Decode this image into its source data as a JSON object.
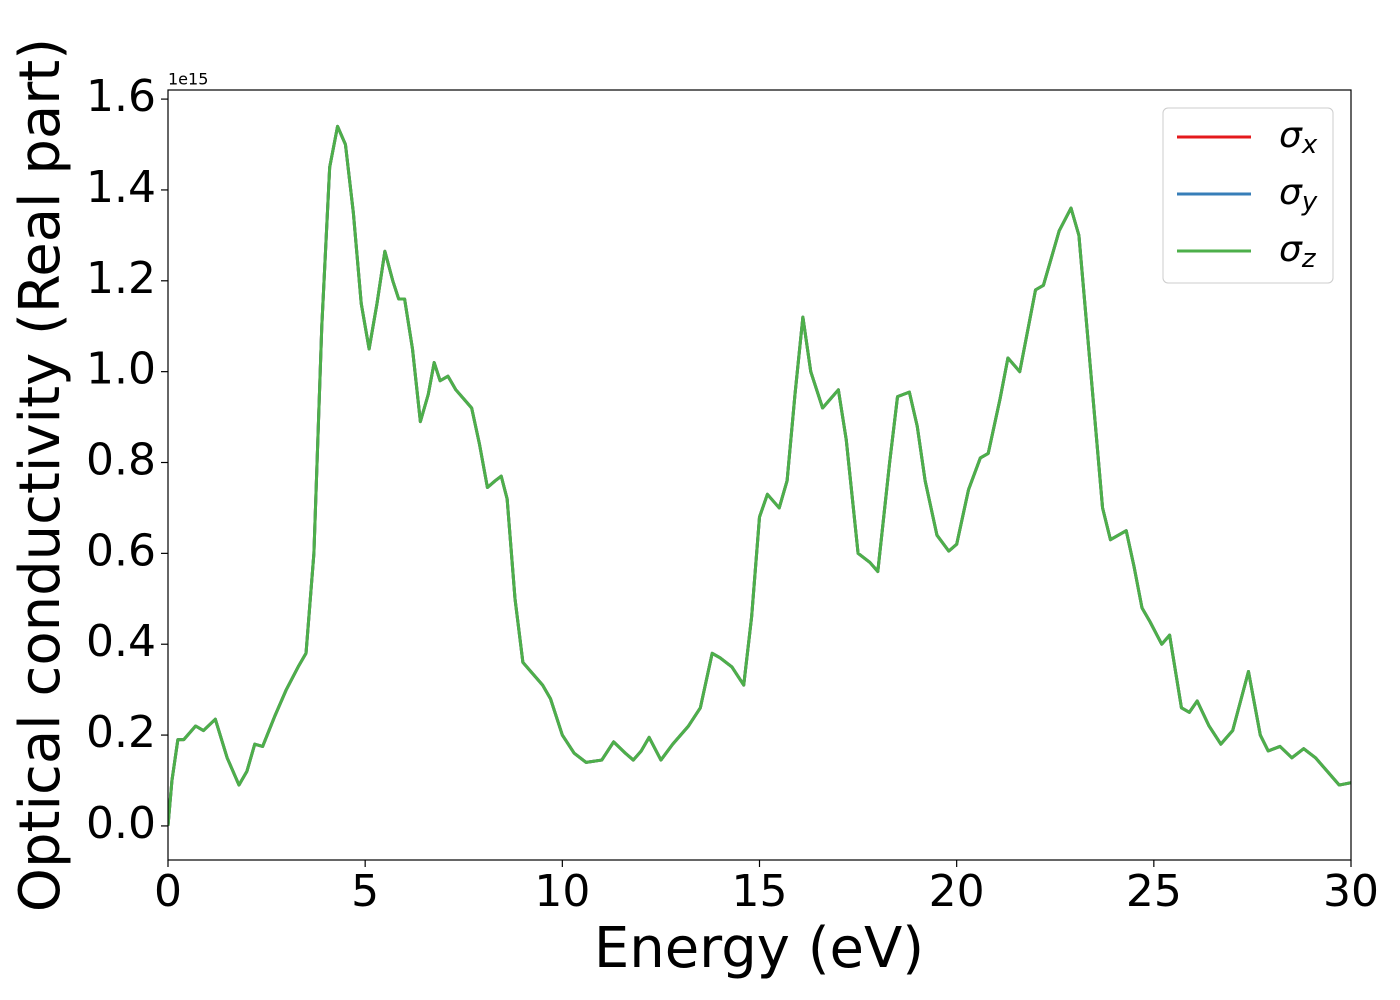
{
  "chart_data": {
    "type": "line",
    "xlabel": "Energy (eV)",
    "ylabel": "Optical conductivity (Real part)",
    "y_offset_label": "1e15",
    "xlim": [
      0,
      30
    ],
    "xticks": [
      0,
      5,
      10,
      15,
      20,
      25,
      30
    ],
    "ylim": [
      -0.075,
      1.62
    ],
    "yticks": [
      {
        "value": 0,
        "label": "0.0"
      },
      0.2,
      0.4,
      0.6,
      0.8,
      {
        "value": 1,
        "label": "1.0"
      },
      1.2,
      1.4,
      1.6
    ],
    "legend": "upper right",
    "x": [
      0,
      0.1,
      0.25,
      0.4,
      0.7,
      0.9,
      1.2,
      1.5,
      1.8,
      2.0,
      2.2,
      2.4,
      2.7,
      3.0,
      3.3,
      3.5,
      3.7,
      3.9,
      4.1,
      4.3,
      4.5,
      4.7,
      4.9,
      5.1,
      5.3,
      5.5,
      5.7,
      5.85,
      6.0,
      6.2,
      6.4,
      6.6,
      6.75,
      6.9,
      7.1,
      7.3,
      7.5,
      7.7,
      7.9,
      8.1,
      8.3,
      8.45,
      8.6,
      8.8,
      9.0,
      9.2,
      9.5,
      9.7,
      10.0,
      10.3,
      10.6,
      11.0,
      11.3,
      11.6,
      11.8,
      12.0,
      12.2,
      12.5,
      12.8,
      13.2,
      13.5,
      13.8,
      14.0,
      14.3,
      14.6,
      14.8,
      15.0,
      15.2,
      15.5,
      15.7,
      15.9,
      16.1,
      16.3,
      16.6,
      16.8,
      17.0,
      17.2,
      17.5,
      17.8,
      18.0,
      18.3,
      18.5,
      18.8,
      19.0,
      19.2,
      19.5,
      19.8,
      20.0,
      20.3,
      20.6,
      20.8,
      21.1,
      21.3,
      21.6,
      21.8,
      22.0,
      22.2,
      22.4,
      22.6,
      22.9,
      23.1,
      23.4,
      23.7,
      23.9,
      24.1,
      24.3,
      24.5,
      24.7,
      24.9,
      25.2,
      25.4,
      25.7,
      25.9,
      26.1,
      26.4,
      26.7,
      27.0,
      27.4,
      27.7,
      27.9,
      28.2,
      28.5,
      28.8,
      29.1,
      29.4,
      29.7,
      30.0
    ],
    "series": [
      {
        "name": "σx",
        "color": "#e41a1c",
        "values": [
          0,
          0.1,
          0.19,
          0.19,
          0.22,
          0.21,
          0.235,
          0.15,
          0.09,
          0.12,
          0.18,
          0.175,
          0.24,
          0.3,
          0.35,
          0.38,
          0.6,
          1.1,
          1.45,
          1.54,
          1.5,
          1.35,
          1.15,
          1.05,
          1.15,
          1.265,
          1.2,
          1.16,
          1.16,
          1.05,
          0.89,
          0.95,
          1.02,
          0.98,
          0.99,
          0.96,
          0.94,
          0.92,
          0.84,
          0.745,
          0.76,
          0.77,
          0.72,
          0.5,
          0.36,
          0.34,
          0.31,
          0.28,
          0.2,
          0.16,
          0.14,
          0.145,
          0.185,
          0.16,
          0.145,
          0.165,
          0.195,
          0.145,
          0.18,
          0.22,
          0.26,
          0.38,
          0.37,
          0.35,
          0.31,
          0.46,
          0.68,
          0.73,
          0.7,
          0.76,
          0.95,
          1.12,
          1.0,
          0.92,
          0.94,
          0.96,
          0.85,
          0.6,
          0.58,
          0.56,
          0.8,
          0.945,
          0.955,
          0.88,
          0.76,
          0.64,
          0.605,
          0.62,
          0.74,
          0.81,
          0.82,
          0.94,
          1.03,
          1.0,
          1.09,
          1.18,
          1.19,
          1.25,
          1.31,
          1.36,
          1.3,
          1.0,
          0.7,
          0.63,
          0.64,
          0.65,
          0.57,
          0.48,
          0.45,
          0.4,
          0.42,
          0.26,
          0.25,
          0.275,
          0.22,
          0.18,
          0.21,
          0.34,
          0.2,
          0.165,
          0.175,
          0.15,
          0.17,
          0.15,
          0.12,
          0.09,
          0.095
        ]
      },
      {
        "name": "σy",
        "color": "#377eb8",
        "values": [
          0,
          0.1,
          0.19,
          0.19,
          0.22,
          0.21,
          0.235,
          0.15,
          0.09,
          0.12,
          0.18,
          0.175,
          0.24,
          0.3,
          0.35,
          0.38,
          0.6,
          1.1,
          1.45,
          1.54,
          1.5,
          1.35,
          1.15,
          1.05,
          1.15,
          1.265,
          1.2,
          1.16,
          1.16,
          1.05,
          0.89,
          0.95,
          1.02,
          0.98,
          0.99,
          0.96,
          0.94,
          0.92,
          0.84,
          0.745,
          0.76,
          0.77,
          0.72,
          0.5,
          0.36,
          0.34,
          0.31,
          0.28,
          0.2,
          0.16,
          0.14,
          0.145,
          0.185,
          0.16,
          0.145,
          0.165,
          0.195,
          0.145,
          0.18,
          0.22,
          0.26,
          0.38,
          0.37,
          0.35,
          0.31,
          0.46,
          0.68,
          0.73,
          0.7,
          0.76,
          0.95,
          1.12,
          1.0,
          0.92,
          0.94,
          0.96,
          0.85,
          0.6,
          0.58,
          0.56,
          0.8,
          0.945,
          0.955,
          0.88,
          0.76,
          0.64,
          0.605,
          0.62,
          0.74,
          0.81,
          0.82,
          0.94,
          1.03,
          1.0,
          1.09,
          1.18,
          1.19,
          1.25,
          1.31,
          1.36,
          1.3,
          1.0,
          0.7,
          0.63,
          0.64,
          0.65,
          0.57,
          0.48,
          0.45,
          0.4,
          0.42,
          0.26,
          0.25,
          0.275,
          0.22,
          0.18,
          0.21,
          0.34,
          0.2,
          0.165,
          0.175,
          0.15,
          0.17,
          0.15,
          0.12,
          0.09,
          0.095
        ]
      },
      {
        "name": "σz",
        "color": "#4daf4a",
        "values": [
          0,
          0.1,
          0.19,
          0.19,
          0.22,
          0.21,
          0.235,
          0.15,
          0.09,
          0.12,
          0.18,
          0.175,
          0.24,
          0.3,
          0.35,
          0.38,
          0.6,
          1.1,
          1.45,
          1.54,
          1.5,
          1.35,
          1.15,
          1.05,
          1.15,
          1.265,
          1.2,
          1.16,
          1.16,
          1.05,
          0.89,
          0.95,
          1.02,
          0.98,
          0.99,
          0.96,
          0.94,
          0.92,
          0.84,
          0.745,
          0.76,
          0.77,
          0.72,
          0.5,
          0.36,
          0.34,
          0.31,
          0.28,
          0.2,
          0.16,
          0.14,
          0.145,
          0.185,
          0.16,
          0.145,
          0.165,
          0.195,
          0.145,
          0.18,
          0.22,
          0.26,
          0.38,
          0.37,
          0.35,
          0.31,
          0.46,
          0.68,
          0.73,
          0.7,
          0.76,
          0.95,
          1.12,
          1.0,
          0.92,
          0.94,
          0.96,
          0.85,
          0.6,
          0.58,
          0.56,
          0.8,
          0.945,
          0.955,
          0.88,
          0.76,
          0.64,
          0.605,
          0.62,
          0.74,
          0.81,
          0.82,
          0.94,
          1.03,
          1.0,
          1.09,
          1.18,
          1.19,
          1.25,
          1.31,
          1.36,
          1.3,
          1.0,
          0.7,
          0.63,
          0.64,
          0.65,
          0.57,
          0.48,
          0.45,
          0.4,
          0.42,
          0.26,
          0.25,
          0.275,
          0.22,
          0.18,
          0.21,
          0.34,
          0.2,
          0.165,
          0.175,
          0.15,
          0.17,
          0.15,
          0.12,
          0.09,
          0.095
        ]
      }
    ]
  }
}
